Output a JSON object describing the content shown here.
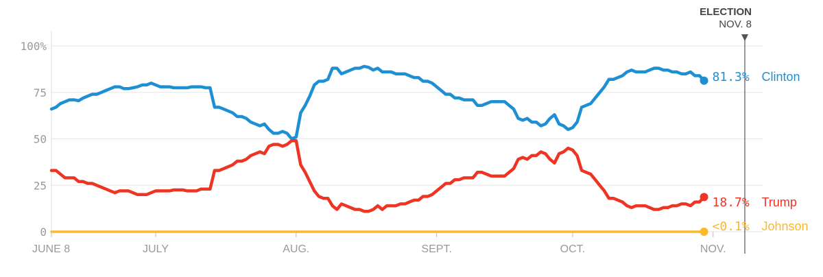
{
  "chart_data": {
    "type": "line",
    "title": "",
    "xlabel": "",
    "ylabel": "",
    "ylim": [
      0,
      100
    ],
    "xlim": [
      0,
      153
    ],
    "grid": true,
    "y_ticks": [
      {
        "value": 100,
        "label": "100%"
      },
      {
        "value": 75,
        "label": "75"
      },
      {
        "value": 50,
        "label": "50"
      },
      {
        "value": 25,
        "label": "25"
      },
      {
        "value": 0,
        "label": "0"
      }
    ],
    "x_ticks": [
      {
        "day": 0,
        "label": "JUNE 8"
      },
      {
        "day": 23,
        "label": "JULY"
      },
      {
        "day": 54,
        "label": "AUG."
      },
      {
        "day": 85,
        "label": "SEPT."
      },
      {
        "day": 115,
        "label": "OCT."
      },
      {
        "day": 146,
        "label": "NOV."
      }
    ],
    "event_marker": {
      "day": 153,
      "title": "ELECTION",
      "date": "NOV. 8"
    },
    "series": [
      {
        "name": "Clinton",
        "end_label": "81.3%",
        "color": "#1e8fd2",
        "points": [
          [
            0,
            66
          ],
          [
            1,
            67
          ],
          [
            2,
            69
          ],
          [
            3,
            70
          ],
          [
            4,
            71
          ],
          [
            5,
            71
          ],
          [
            6,
            70.5
          ],
          [
            7,
            72
          ],
          [
            8,
            73
          ],
          [
            9,
            74
          ],
          [
            10,
            74
          ],
          [
            11,
            75
          ],
          [
            12,
            76
          ],
          [
            13,
            77
          ],
          [
            14,
            78
          ],
          [
            15,
            78
          ],
          [
            16,
            77
          ],
          [
            17,
            77
          ],
          [
            18,
            77.5
          ],
          [
            19,
            78
          ],
          [
            20,
            79
          ],
          [
            21,
            79
          ],
          [
            22,
            80
          ],
          [
            23,
            79
          ],
          [
            24,
            78
          ],
          [
            25,
            78
          ],
          [
            26,
            78
          ],
          [
            27,
            77.5
          ],
          [
            28,
            77.5
          ],
          [
            29,
            77.5
          ],
          [
            30,
            77.5
          ],
          [
            31,
            78
          ],
          [
            32,
            78
          ],
          [
            33,
            78
          ],
          [
            34,
            77.5
          ],
          [
            35,
            77.5
          ],
          [
            36,
            67
          ],
          [
            37,
            67
          ],
          [
            38,
            66
          ],
          [
            39,
            65
          ],
          [
            40,
            64
          ],
          [
            41,
            62
          ],
          [
            42,
            62
          ],
          [
            43,
            61
          ],
          [
            44,
            59
          ],
          [
            45,
            58
          ],
          [
            46,
            57
          ],
          [
            47,
            58
          ],
          [
            48,
            55
          ],
          [
            49,
            53
          ],
          [
            50,
            53
          ],
          [
            51,
            54
          ],
          [
            52,
            53
          ],
          [
            53,
            50
          ],
          [
            54,
            51
          ],
          [
            55,
            64
          ],
          [
            56,
            68
          ],
          [
            57,
            73
          ],
          [
            58,
            79
          ],
          [
            59,
            81
          ],
          [
            60,
            81
          ],
          [
            61,
            82
          ],
          [
            62,
            88
          ],
          [
            63,
            88
          ],
          [
            64,
            85
          ],
          [
            65,
            86
          ],
          [
            66,
            87
          ],
          [
            67,
            88
          ],
          [
            68,
            88
          ],
          [
            69,
            89
          ],
          [
            70,
            88.5
          ],
          [
            71,
            87
          ],
          [
            72,
            88
          ],
          [
            73,
            86
          ],
          [
            74,
            86
          ],
          [
            75,
            86
          ],
          [
            76,
            85
          ],
          [
            77,
            85
          ],
          [
            78,
            85
          ],
          [
            79,
            84
          ],
          [
            80,
            83
          ],
          [
            81,
            83
          ],
          [
            82,
            81
          ],
          [
            83,
            81
          ],
          [
            84,
            80
          ],
          [
            85,
            78
          ],
          [
            86,
            76
          ],
          [
            87,
            74
          ],
          [
            88,
            74
          ],
          [
            89,
            72
          ],
          [
            90,
            72
          ],
          [
            91,
            71
          ],
          [
            92,
            71
          ],
          [
            93,
            71
          ],
          [
            94,
            68
          ],
          [
            95,
            68
          ],
          [
            96,
            69
          ],
          [
            97,
            70
          ],
          [
            98,
            70
          ],
          [
            99,
            70
          ],
          [
            100,
            70
          ],
          [
            101,
            68
          ],
          [
            102,
            66
          ],
          [
            103,
            61
          ],
          [
            104,
            60
          ],
          [
            105,
            61
          ],
          [
            106,
            59
          ],
          [
            107,
            59
          ],
          [
            108,
            57
          ],
          [
            109,
            58
          ],
          [
            110,
            61
          ],
          [
            111,
            63
          ],
          [
            112,
            58
          ],
          [
            113,
            57
          ],
          [
            114,
            55
          ],
          [
            115,
            56
          ],
          [
            116,
            59
          ],
          [
            117,
            67
          ],
          [
            118,
            68
          ],
          [
            119,
            69
          ],
          [
            120,
            72
          ],
          [
            121,
            75
          ],
          [
            122,
            78
          ],
          [
            123,
            82
          ],
          [
            124,
            82
          ],
          [
            125,
            83
          ],
          [
            126,
            84
          ],
          [
            127,
            86
          ],
          [
            128,
            87
          ],
          [
            129,
            86
          ],
          [
            130,
            86
          ],
          [
            131,
            86
          ],
          [
            132,
            87
          ],
          [
            133,
            88
          ],
          [
            134,
            88
          ],
          [
            135,
            87
          ],
          [
            136,
            87
          ],
          [
            137,
            86
          ],
          [
            138,
            86
          ],
          [
            139,
            85
          ],
          [
            140,
            85
          ],
          [
            141,
            86
          ],
          [
            142,
            84
          ],
          [
            143,
            84
          ],
          [
            144,
            81.3
          ]
        ]
      },
      {
        "name": "Trump",
        "end_label": "18.7%",
        "color": "#ee3524",
        "points": [
          [
            0,
            33
          ],
          [
            1,
            33
          ],
          [
            2,
            31
          ],
          [
            3,
            29
          ],
          [
            4,
            29
          ],
          [
            5,
            29
          ],
          [
            6,
            27
          ],
          [
            7,
            27
          ],
          [
            8,
            26
          ],
          [
            9,
            26
          ],
          [
            10,
            25
          ],
          [
            11,
            24
          ],
          [
            12,
            23
          ],
          [
            13,
            22
          ],
          [
            14,
            21
          ],
          [
            15,
            22
          ],
          [
            16,
            22
          ],
          [
            17,
            22
          ],
          [
            18,
            21
          ],
          [
            19,
            20
          ],
          [
            20,
            20
          ],
          [
            21,
            20
          ],
          [
            22,
            21
          ],
          [
            23,
            22
          ],
          [
            24,
            22
          ],
          [
            25,
            22
          ],
          [
            26,
            22
          ],
          [
            27,
            22.5
          ],
          [
            28,
            22.5
          ],
          [
            29,
            22.5
          ],
          [
            30,
            22
          ],
          [
            31,
            22
          ],
          [
            32,
            22
          ],
          [
            33,
            23
          ],
          [
            34,
            23
          ],
          [
            35,
            23
          ],
          [
            36,
            33
          ],
          [
            37,
            33
          ],
          [
            38,
            34
          ],
          [
            39,
            35
          ],
          [
            40,
            36
          ],
          [
            41,
            38
          ],
          [
            42,
            38
          ],
          [
            43,
            39
          ],
          [
            44,
            41
          ],
          [
            45,
            42
          ],
          [
            46,
            43
          ],
          [
            47,
            42
          ],
          [
            48,
            46
          ],
          [
            49,
            47
          ],
          [
            50,
            47
          ],
          [
            51,
            46
          ],
          [
            52,
            47
          ],
          [
            53,
            49
          ],
          [
            54,
            49
          ],
          [
            55,
            36
          ],
          [
            56,
            32
          ],
          [
            57,
            27
          ],
          [
            58,
            22
          ],
          [
            59,
            19
          ],
          [
            60,
            18
          ],
          [
            61,
            18
          ],
          [
            62,
            14
          ],
          [
            63,
            12
          ],
          [
            64,
            15
          ],
          [
            65,
            14
          ],
          [
            66,
            13
          ],
          [
            67,
            12
          ],
          [
            68,
            12
          ],
          [
            69,
            11
          ],
          [
            70,
            11
          ],
          [
            71,
            12
          ],
          [
            72,
            14
          ],
          [
            73,
            12
          ],
          [
            74,
            14
          ],
          [
            75,
            14
          ],
          [
            76,
            14
          ],
          [
            77,
            15
          ],
          [
            78,
            15
          ],
          [
            79,
            16
          ],
          [
            80,
            17
          ],
          [
            81,
            17
          ],
          [
            82,
            19
          ],
          [
            83,
            19
          ],
          [
            84,
            20
          ],
          [
            85,
            22
          ],
          [
            86,
            24
          ],
          [
            87,
            26
          ],
          [
            88,
            26
          ],
          [
            89,
            28
          ],
          [
            90,
            28
          ],
          [
            91,
            29
          ],
          [
            92,
            29
          ],
          [
            93,
            29
          ],
          [
            94,
            32
          ],
          [
            95,
            32
          ],
          [
            96,
            31
          ],
          [
            97,
            30
          ],
          [
            98,
            30
          ],
          [
            99,
            30
          ],
          [
            100,
            30
          ],
          [
            101,
            32
          ],
          [
            102,
            34
          ],
          [
            103,
            39
          ],
          [
            104,
            40
          ],
          [
            105,
            39
          ],
          [
            106,
            41
          ],
          [
            107,
            41
          ],
          [
            108,
            43
          ],
          [
            109,
            42
          ],
          [
            110,
            39
          ],
          [
            111,
            37
          ],
          [
            112,
            42
          ],
          [
            113,
            43
          ],
          [
            114,
            45
          ],
          [
            115,
            44
          ],
          [
            116,
            41
          ],
          [
            117,
            33
          ],
          [
            118,
            32
          ],
          [
            119,
            31
          ],
          [
            120,
            28
          ],
          [
            121,
            25
          ],
          [
            122,
            22
          ],
          [
            123,
            18
          ],
          [
            124,
            18
          ],
          [
            125,
            17
          ],
          [
            126,
            16
          ],
          [
            127,
            14
          ],
          [
            128,
            13
          ],
          [
            129,
            14
          ],
          [
            130,
            14
          ],
          [
            131,
            14
          ],
          [
            132,
            13
          ],
          [
            133,
            12
          ],
          [
            134,
            12
          ],
          [
            135,
            13
          ],
          [
            136,
            13
          ],
          [
            137,
            14
          ],
          [
            138,
            14
          ],
          [
            139,
            15
          ],
          [
            140,
            15
          ],
          [
            141,
            14
          ],
          [
            142,
            16
          ],
          [
            143,
            16
          ],
          [
            144,
            18.7
          ]
        ]
      },
      {
        "name": "Johnson",
        "end_label": "<0.1%",
        "color": "#fcb82a",
        "points": [
          [
            0,
            0
          ],
          [
            144,
            0
          ]
        ]
      }
    ]
  }
}
